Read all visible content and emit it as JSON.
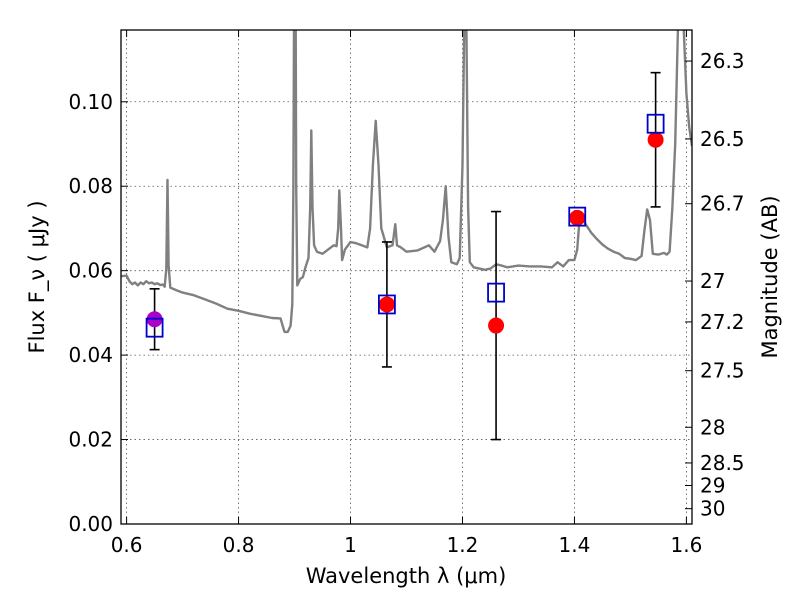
{
  "chart_data": {
    "type": "scatter",
    "xlabel": "Wavelength λ (μm)",
    "ylabel": "Flux F_ν ( μJy )",
    "ylabel_right": "Magnitude (AB)",
    "xlim": [
      0.59,
      1.61
    ],
    "ylim": [
      0.0,
      0.117
    ],
    "grid": true,
    "x_ticks": [
      {
        "value": 0.6,
        "label": "0.6"
      },
      {
        "value": 0.8,
        "label": "0.8"
      },
      {
        "value": 1.0,
        "label": "1"
      },
      {
        "value": 1.2,
        "label": "1.2"
      },
      {
        "value": 1.4,
        "label": "1.4"
      },
      {
        "value": 1.6,
        "label": "1.6"
      }
    ],
    "y_ticks": [
      {
        "value": 0.0,
        "label": "0.00"
      },
      {
        "value": 0.02,
        "label": "0.02"
      },
      {
        "value": 0.04,
        "label": "0.04"
      },
      {
        "value": 0.06,
        "label": "0.06"
      },
      {
        "value": 0.08,
        "label": "0.08"
      },
      {
        "value": 0.1,
        "label": "0.10"
      }
    ],
    "right_ticks": [
      {
        "mag": 26.3,
        "label": "26.3"
      },
      {
        "mag": 26.5,
        "label": "26.5"
      },
      {
        "mag": 26.7,
        "label": "26.7"
      },
      {
        "mag": 27,
        "label": "27"
      },
      {
        "mag": 27.2,
        "label": "27.2"
      },
      {
        "mag": 27.5,
        "label": "27.5"
      },
      {
        "mag": 28,
        "label": "28"
      },
      {
        "mag": 28.5,
        "label": "28.5"
      },
      {
        "mag": 29,
        "label": "29"
      },
      {
        "mag": 30,
        "label": "30"
      }
    ],
    "series": [
      {
        "kind": "line",
        "color": "#808080",
        "points": [
          [
            0.59,
            0.0587
          ],
          [
            0.6,
            0.0588
          ],
          [
            0.605,
            0.0575
          ],
          [
            0.61,
            0.0568
          ],
          [
            0.615,
            0.0572
          ],
          [
            0.62,
            0.0565
          ],
          [
            0.625,
            0.0572
          ],
          [
            0.63,
            0.0568
          ],
          [
            0.635,
            0.0575
          ],
          [
            0.64,
            0.057
          ],
          [
            0.645,
            0.0572
          ],
          [
            0.65,
            0.0568
          ],
          [
            0.655,
            0.057
          ],
          [
            0.66,
            0.0566
          ],
          [
            0.665,
            0.0567
          ],
          [
            0.668,
            0.0562
          ],
          [
            0.671,
            0.0605
          ],
          [
            0.673,
            0.0815
          ],
          [
            0.675,
            0.0612
          ],
          [
            0.678,
            0.056
          ],
          [
            0.69,
            0.0553
          ],
          [
            0.7,
            0.0548
          ],
          [
            0.72,
            0.0542
          ],
          [
            0.74,
            0.0532
          ],
          [
            0.76,
            0.0522
          ],
          [
            0.78,
            0.051
          ],
          [
            0.8,
            0.0505
          ],
          [
            0.82,
            0.0498
          ],
          [
            0.84,
            0.0493
          ],
          [
            0.86,
            0.0488
          ],
          [
            0.875,
            0.0487
          ],
          [
            0.882,
            0.0455
          ],
          [
            0.888,
            0.0455
          ],
          [
            0.893,
            0.047
          ],
          [
            0.896,
            0.052
          ],
          [
            0.898,
            0.08
          ],
          [
            0.899,
            0.118
          ],
          [
            0.902,
            0.118
          ],
          [
            0.903,
            0.08
          ],
          [
            0.905,
            0.0565
          ],
          [
            0.91,
            0.058
          ],
          [
            0.915,
            0.0585
          ],
          [
            0.92,
            0.061
          ],
          [
            0.925,
            0.063
          ],
          [
            0.928,
            0.075
          ],
          [
            0.93,
            0.0932
          ],
          [
            0.932,
            0.075
          ],
          [
            0.935,
            0.066
          ],
          [
            0.94,
            0.0645
          ],
          [
            0.95,
            0.064
          ],
          [
            0.96,
            0.065
          ],
          [
            0.97,
            0.066
          ],
          [
            0.975,
            0.0658
          ],
          [
            0.978,
            0.07
          ],
          [
            0.98,
            0.079
          ],
          [
            0.983,
            0.07
          ],
          [
            0.985,
            0.0625
          ],
          [
            0.99,
            0.065
          ],
          [
            1.0,
            0.0668
          ],
          [
            1.01,
            0.0665
          ],
          [
            1.02,
            0.066
          ],
          [
            1.03,
            0.0655
          ],
          [
            1.035,
            0.07
          ],
          [
            1.04,
            0.085
          ],
          [
            1.045,
            0.0955
          ],
          [
            1.05,
            0.085
          ],
          [
            1.055,
            0.07
          ],
          [
            1.065,
            0.0655
          ],
          [
            1.075,
            0.066
          ],
          [
            1.08,
            0.071
          ],
          [
            1.083,
            0.066
          ],
          [
            1.09,
            0.0655
          ],
          [
            1.1,
            0.0645
          ],
          [
            1.12,
            0.0648
          ],
          [
            1.14,
            0.066
          ],
          [
            1.15,
            0.0645
          ],
          [
            1.16,
            0.067
          ],
          [
            1.165,
            0.072
          ],
          [
            1.17,
            0.08
          ],
          [
            1.175,
            0.068
          ],
          [
            1.18,
            0.062
          ],
          [
            1.19,
            0.0615
          ],
          [
            1.195,
            0.063
          ],
          [
            1.2,
            0.085
          ],
          [
            1.203,
            0.118
          ],
          [
            1.207,
            0.118
          ],
          [
            1.21,
            0.075
          ],
          [
            1.213,
            0.062
          ],
          [
            1.22,
            0.0608
          ],
          [
            1.23,
            0.0605
          ],
          [
            1.24,
            0.0602
          ],
          [
            1.25,
            0.0605
          ],
          [
            1.26,
            0.0615
          ],
          [
            1.27,
            0.0612
          ],
          [
            1.28,
            0.0608
          ],
          [
            1.3,
            0.0612
          ],
          [
            1.32,
            0.061
          ],
          [
            1.34,
            0.061
          ],
          [
            1.36,
            0.0608
          ],
          [
            1.37,
            0.062
          ],
          [
            1.38,
            0.061
          ],
          [
            1.39,
            0.0625
          ],
          [
            1.4,
            0.0625
          ],
          [
            1.405,
            0.065
          ],
          [
            1.41,
            0.0735
          ],
          [
            1.42,
            0.071
          ],
          [
            1.43,
            0.069
          ],
          [
            1.44,
            0.0675
          ],
          [
            1.45,
            0.0662
          ],
          [
            1.46,
            0.0652
          ],
          [
            1.47,
            0.0645
          ],
          [
            1.48,
            0.064
          ],
          [
            1.49,
            0.063
          ],
          [
            1.5,
            0.0628
          ],
          [
            1.51,
            0.0625
          ],
          [
            1.52,
            0.0635
          ],
          [
            1.525,
            0.0695
          ],
          [
            1.53,
            0.0745
          ],
          [
            1.535,
            0.072
          ],
          [
            1.54,
            0.064
          ],
          [
            1.55,
            0.0638
          ],
          [
            1.56,
            0.0642
          ],
          [
            1.565,
            0.0638
          ],
          [
            1.57,
            0.0645
          ],
          [
            1.575,
            0.075
          ],
          [
            1.58,
            0.09
          ],
          [
            1.585,
            0.118
          ],
          [
            1.59,
            0.118
          ],
          [
            1.595,
            0.118
          ],
          [
            1.6,
            0.102
          ],
          [
            1.605,
            0.094
          ],
          [
            1.61,
            0.0895
          ]
        ]
      },
      {
        "kind": "scatter",
        "marker": "circle",
        "color": "#ff0000",
        "points": [
          {
            "x": 1.065,
            "y": 0.052,
            "err": 0.0148
          },
          {
            "x": 1.26,
            "y": 0.047,
            "err": 0.027
          },
          {
            "x": 1.405,
            "y": 0.0725,
            "err": null
          },
          {
            "x": 1.545,
            "y": 0.091,
            "err": 0.0159
          }
        ]
      },
      {
        "kind": "scatter",
        "marker": "circle",
        "color": "#aa00cc",
        "points": [
          {
            "x": 0.65,
            "y": 0.0485,
            "err": 0.0072
          }
        ]
      },
      {
        "kind": "scatter",
        "marker": "square",
        "color": "#0000cc",
        "points": [
          {
            "x": 0.65,
            "y": 0.0465
          },
          {
            "x": 1.065,
            "y": 0.052
          },
          {
            "x": 1.26,
            "y": 0.0548
          },
          {
            "x": 1.405,
            "y": 0.0728
          },
          {
            "x": 1.545,
            "y": 0.0948
          }
        ]
      }
    ]
  }
}
